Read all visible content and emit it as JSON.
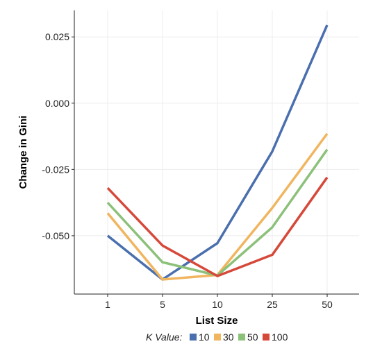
{
  "chart_data": {
    "type": "line",
    "title": "",
    "xlabel": "List Size",
    "ylabel": "Change in Gini",
    "categories": [
      "1",
      "5",
      "10",
      "25",
      "50"
    ],
    "ylim": [
      -0.072,
      0.035
    ],
    "yticks": [
      {
        "value": 0.025,
        "label": "0.025"
      },
      {
        "value": 0.0,
        "label": "0.000"
      },
      {
        "value": -0.025,
        "label": "-0.025"
      },
      {
        "value": -0.05,
        "label": "-0.050"
      }
    ],
    "grid": true,
    "legend_position": "bottom",
    "legend_title": "K Value:",
    "series": [
      {
        "name": "10",
        "color": "#4a6fae",
        "values": [
          -0.05,
          -0.0665,
          -0.0528,
          -0.0182,
          0.0295
        ]
      },
      {
        "name": "30",
        "color": "#f1b55f",
        "values": [
          -0.0415,
          -0.0665,
          -0.0648,
          -0.0395,
          -0.0115
        ]
      },
      {
        "name": "50",
        "color": "#8cc17a",
        "values": [
          -0.0375,
          -0.06,
          -0.065,
          -0.0468,
          -0.0175
        ]
      },
      {
        "name": "100",
        "color": "#d6493a",
        "values": [
          -0.032,
          -0.0537,
          -0.0652,
          -0.0572,
          -0.028
        ]
      }
    ]
  }
}
